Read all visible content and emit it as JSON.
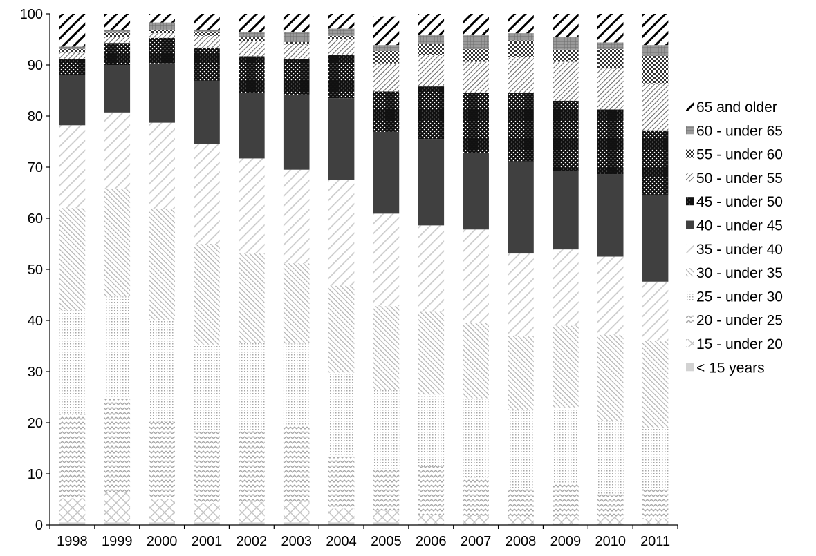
{
  "chart_data": {
    "type": "bar",
    "stacked": true,
    "title": "",
    "xlabel": "",
    "ylabel": "",
    "ylim": [
      0,
      100
    ],
    "yticks": [
      "0",
      "10",
      "20",
      "30",
      "40",
      "50",
      "60",
      "70",
      "80",
      "90",
      "100"
    ],
    "categories": [
      "1998",
      "1999",
      "2000",
      "2001",
      "2002",
      "2003",
      "2004",
      "2005",
      "2006",
      "2007",
      "2008",
      "2009",
      "2010",
      "2011"
    ],
    "legend_position": "right",
    "grid": false,
    "series": [
      {
        "name": "< 15 years",
        "values": [
          0.5,
          0.5,
          0.5,
          0.5,
          0.5,
          0.5,
          0.5,
          0.5,
          0.3,
          0.3,
          0.3,
          0.3,
          0.3,
          0.3
        ]
      },
      {
        "name": "15 - under 20",
        "values": [
          4.7,
          5.9,
          4.5,
          3.8,
          4.0,
          4.0,
          2.7,
          2.3,
          1.7,
          1.5,
          1.2,
          1.2,
          1.2,
          0.8
        ]
      },
      {
        "name": "20 - under 25",
        "values": [
          16.5,
          18.3,
          15.2,
          14.0,
          14.1,
          15.0,
          10.2,
          8.2,
          9.5,
          7.5,
          5.8,
          6.5,
          4.5,
          5.9
        ]
      },
      {
        "name": "25 - under 30",
        "values": [
          20.3,
          20.0,
          19.8,
          17.0,
          17.0,
          16.0,
          16.4,
          15.5,
          14.0,
          15.5,
          15.2,
          15.0,
          14.4,
          12.0
        ]
      },
      {
        "name": "30 - under 35",
        "values": [
          20.0,
          21.0,
          21.8,
          19.7,
          17.5,
          15.7,
          17.0,
          16.3,
          16.2,
          14.8,
          14.5,
          16.0,
          16.8,
          17.0
        ]
      },
      {
        "name": "35 - under  40",
        "values": [
          16.2,
          15.0,
          16.9,
          19.5,
          18.6,
          18.3,
          20.7,
          18.1,
          16.9,
          18.2,
          16.1,
          14.9,
          15.3,
          11.6
        ]
      },
      {
        "name": "40 - under 45",
        "values": [
          9.9,
          9.3,
          11.6,
          12.4,
          12.8,
          14.7,
          16.0,
          16.0,
          16.9,
          15.0,
          18.0,
          15.4,
          16.1,
          17.0
        ]
      },
      {
        "name": "45 - under 50",
        "values": [
          3.1,
          4.3,
          5.0,
          6.5,
          7.2,
          7.0,
          8.4,
          7.9,
          10.3,
          11.7,
          13.5,
          13.7,
          12.7,
          12.6
        ]
      },
      {
        "name": "50 - under 55",
        "values": [
          1.2,
          1.2,
          0.9,
          2.3,
          2.9,
          2.8,
          3.2,
          5.5,
          6.1,
          6.1,
          6.9,
          7.6,
          8.0,
          9.2
        ]
      },
      {
        "name": "55 - under 60",
        "values": [
          0.7,
          0.8,
          0.7,
          0.8,
          0.8,
          0.5,
          0.6,
          2.4,
          2.2,
          2.5,
          3.3,
          2.4,
          3.8,
          5.4
        ]
      },
      {
        "name": "60 - under 65",
        "values": [
          0.5,
          0.6,
          1.4,
          0.4,
          1.0,
          1.9,
          1.4,
          1.2,
          1.7,
          2.7,
          1.4,
          2.5,
          1.3,
          2.1
        ]
      },
      {
        "name": "65 and older",
        "values": [
          6.4,
          3.1,
          1.7,
          3.1,
          3.6,
          3.6,
          2.9,
          5.6,
          5.2,
          4.2,
          3.8,
          4.5,
          5.6,
          6.1
        ]
      }
    ]
  },
  "colors": {
    "dark": "#404040",
    "black": "#000000",
    "light": "#b0b0b0",
    "lighter": "#d0d0d0"
  }
}
